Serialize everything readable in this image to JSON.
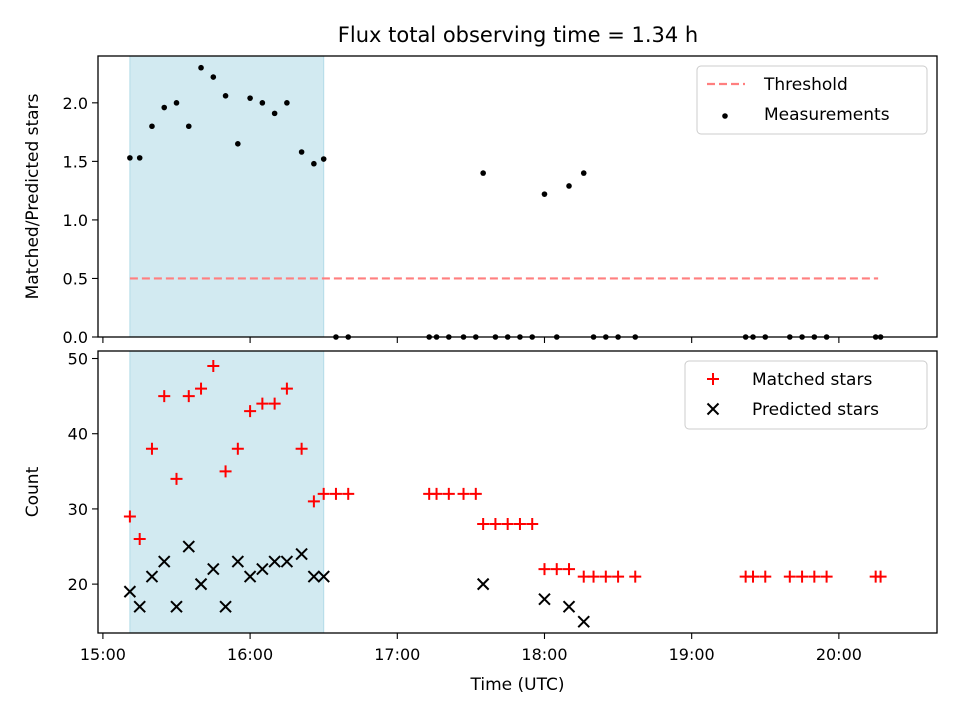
{
  "chart_data": [
    {
      "type": "scatter",
      "title": "Flux total observing time = 1.34 h",
      "xlabel": "",
      "ylabel": "Matched/Predicted stars",
      "xlim": [
        "14:58",
        "20:40"
      ],
      "ylim": [
        0,
        2.4
      ],
      "yticks": [
        "0.0",
        "0.5",
        "1.0",
        "1.5",
        "2.0"
      ],
      "xticks": [
        "15:00",
        "16:00",
        "17:00",
        "18:00",
        "19:00",
        "20:00"
      ],
      "xtick_labels_shown": false,
      "shaded_span": [
        "15:11",
        "16:30"
      ],
      "legend_position": "upper-right",
      "series": [
        {
          "name": "Threshold",
          "kind": "dashed-line",
          "color": "#ff7f7f",
          "points": [
            [
              "15:11",
              0.5
            ],
            [
              "20:16",
              0.5
            ]
          ]
        },
        {
          "name": "Measurements",
          "kind": "dots",
          "color": "#000000",
          "points": [
            [
              "15:11",
              1.53
            ],
            [
              "15:15",
              1.53
            ],
            [
              "15:20",
              1.8
            ],
            [
              "15:25",
              1.96
            ],
            [
              "15:30",
              2.0
            ],
            [
              "15:35",
              1.8
            ],
            [
              "15:40",
              2.3
            ],
            [
              "15:45",
              2.22
            ],
            [
              "15:50",
              2.06
            ],
            [
              "15:55",
              1.65
            ],
            [
              "16:00",
              2.04
            ],
            [
              "16:05",
              2.0
            ],
            [
              "16:10",
              1.91
            ],
            [
              "16:15",
              2.0
            ],
            [
              "16:21",
              1.58
            ],
            [
              "16:26",
              1.48
            ],
            [
              "16:30",
              1.52
            ],
            [
              "16:35",
              0
            ],
            [
              "16:40",
              0
            ],
            [
              "17:13",
              0
            ],
            [
              "17:16",
              0
            ],
            [
              "17:21",
              0
            ],
            [
              "17:27",
              0
            ],
            [
              "17:32",
              0
            ],
            [
              "17:35",
              1.4
            ],
            [
              "17:40",
              0
            ],
            [
              "17:45",
              0
            ],
            [
              "17:50",
              0
            ],
            [
              "17:55",
              0
            ],
            [
              "18:00",
              1.22
            ],
            [
              "18:05",
              0
            ],
            [
              "18:10",
              1.29
            ],
            [
              "18:16",
              1.4
            ],
            [
              "18:20",
              0
            ],
            [
              "18:25",
              0
            ],
            [
              "18:30",
              0
            ],
            [
              "18:37",
              0
            ],
            [
              "19:22",
              0
            ],
            [
              "19:25",
              0
            ],
            [
              "19:30",
              0
            ],
            [
              "19:40",
              0
            ],
            [
              "19:45",
              0
            ],
            [
              "19:50",
              0
            ],
            [
              "19:55",
              0
            ],
            [
              "20:15",
              0
            ],
            [
              "20:17",
              0
            ]
          ]
        }
      ]
    },
    {
      "type": "scatter",
      "title": "",
      "xlabel": "Time (UTC)",
      "ylabel": "Count",
      "xlim": [
        "14:58",
        "20:40"
      ],
      "ylim": [
        13.5,
        51
      ],
      "yticks": [
        "20",
        "30",
        "40",
        "50"
      ],
      "xticks": [
        "15:00",
        "16:00",
        "17:00",
        "18:00",
        "19:00",
        "20:00"
      ],
      "shaded_span": [
        "15:11",
        "16:30"
      ],
      "legend_position": "upper-right",
      "series": [
        {
          "name": "Matched stars",
          "kind": "plus",
          "color": "#ff0000",
          "points": [
            [
              "15:11",
              29
            ],
            [
              "15:15",
              26
            ],
            [
              "15:20",
              38
            ],
            [
              "15:25",
              45
            ],
            [
              "15:30",
              34
            ],
            [
              "15:35",
              45
            ],
            [
              "15:40",
              46
            ],
            [
              "15:45",
              49
            ],
            [
              "15:50",
              35
            ],
            [
              "15:55",
              38
            ],
            [
              "16:00",
              43
            ],
            [
              "16:05",
              44
            ],
            [
              "16:10",
              44
            ],
            [
              "16:15",
              46
            ],
            [
              "16:21",
              38
            ],
            [
              "16:26",
              31
            ],
            [
              "16:30",
              32
            ],
            [
              "16:35",
              32
            ],
            [
              "16:40",
              32
            ],
            [
              "17:13",
              32
            ],
            [
              "17:16",
              32
            ],
            [
              "17:21",
              32
            ],
            [
              "17:27",
              32
            ],
            [
              "17:32",
              32
            ],
            [
              "17:35",
              28
            ],
            [
              "17:40",
              28
            ],
            [
              "17:45",
              28
            ],
            [
              "17:50",
              28
            ],
            [
              "17:55",
              28
            ],
            [
              "18:00",
              22
            ],
            [
              "18:05",
              22
            ],
            [
              "18:10",
              22
            ],
            [
              "18:16",
              21
            ],
            [
              "18:20",
              21
            ],
            [
              "18:25",
              21
            ],
            [
              "18:30",
              21
            ],
            [
              "18:37",
              21
            ],
            [
              "19:22",
              21
            ],
            [
              "19:25",
              21
            ],
            [
              "19:30",
              21
            ],
            [
              "19:40",
              21
            ],
            [
              "19:45",
              21
            ],
            [
              "19:50",
              21
            ],
            [
              "19:55",
              21
            ],
            [
              "20:15",
              21
            ],
            [
              "20:17",
              21
            ]
          ]
        },
        {
          "name": "Predicted stars",
          "kind": "x",
          "color": "#000000",
          "points": [
            [
              "15:11",
              19
            ],
            [
              "15:15",
              17
            ],
            [
              "15:20",
              21
            ],
            [
              "15:25",
              23
            ],
            [
              "15:30",
              17
            ],
            [
              "15:35",
              25
            ],
            [
              "15:40",
              20
            ],
            [
              "15:45",
              22
            ],
            [
              "15:50",
              17
            ],
            [
              "15:55",
              23
            ],
            [
              "16:00",
              21
            ],
            [
              "16:05",
              22
            ],
            [
              "16:10",
              23
            ],
            [
              "16:15",
              23
            ],
            [
              "16:21",
              24
            ],
            [
              "16:26",
              21
            ],
            [
              "16:30",
              21
            ],
            [
              "17:35",
              20
            ],
            [
              "18:00",
              18
            ],
            [
              "18:10",
              17
            ],
            [
              "18:16",
              15
            ]
          ]
        }
      ]
    }
  ]
}
